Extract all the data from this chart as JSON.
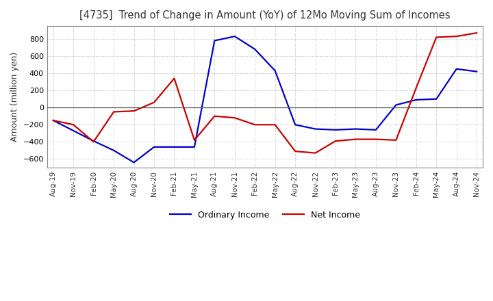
{
  "title": "[4735]  Trend of Change in Amount (YoY) of 12Mo Moving Sum of Incomes",
  "ylabel": "Amount (million yen)",
  "ylim": [
    -700,
    950
  ],
  "yticks": [
    -600,
    -400,
    -200,
    0,
    200,
    400,
    600,
    800
  ],
  "line_colors": {
    "ordinary": "#0000cc",
    "net": "#cc0000"
  },
  "line_width": 1.6,
  "background_color": "#ffffff",
  "grid_color": "#aaaaaa",
  "x_labels": [
    "Aug-19",
    "Nov-19",
    "Feb-20",
    "May-20",
    "Aug-20",
    "Nov-20",
    "Feb-21",
    "May-21",
    "Aug-21",
    "Nov-21",
    "Feb-22",
    "May-22",
    "Aug-22",
    "Nov-22",
    "Feb-23",
    "May-23",
    "Aug-23",
    "Nov-23",
    "Feb-24",
    "May-24",
    "Aug-24",
    "Nov-24"
  ],
  "ordinary_income": [
    -150,
    -270,
    -390,
    -500,
    -640,
    -460,
    -460,
    -460,
    780,
    830,
    680,
    430,
    -200,
    -250,
    -260,
    -250,
    -260,
    30,
    90,
    100,
    450,
    420
  ],
  "net_income": [
    -150,
    -200,
    -400,
    -50,
    -40,
    60,
    340,
    -380,
    -100,
    -120,
    -200,
    -200,
    -510,
    -530,
    -390,
    -370,
    -370,
    -380,
    230,
    820,
    830,
    870
  ],
  "legend_labels": [
    "Ordinary Income",
    "Net Income"
  ]
}
